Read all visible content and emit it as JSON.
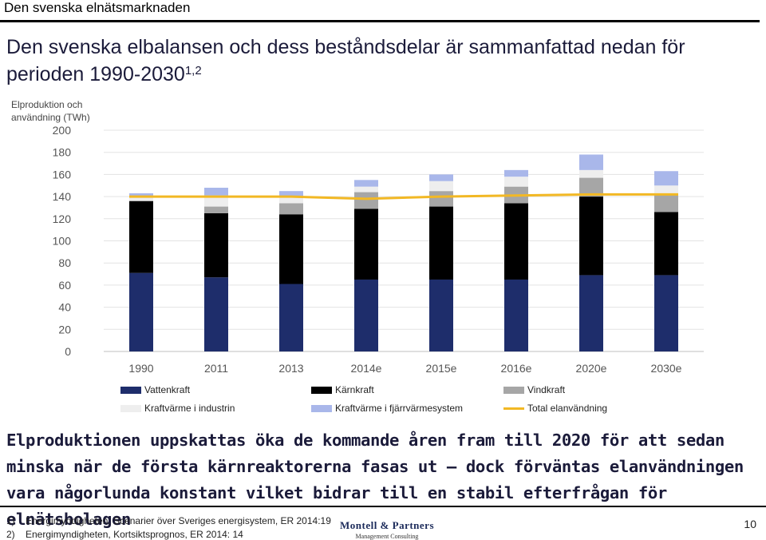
{
  "header": {
    "section_title": "Den svenska elnätsmarknaden"
  },
  "headline": {
    "text": "Den svenska elbalansen och dess beståndsdelar är sammanfattad nedan för perioden 1990-2030",
    "superscript": "1,2"
  },
  "chart_data": {
    "type": "bar",
    "stacked": true,
    "ylabel": "Elproduktion och användning (TWh)",
    "ylim": [
      0,
      200
    ],
    "yticks": [
      0,
      20,
      40,
      60,
      80,
      100,
      120,
      140,
      160,
      180,
      200
    ],
    "grid": true,
    "legend_position": "bottom",
    "categories": [
      "1990",
      "2011",
      "2013",
      "2014e",
      "2015e",
      "2016e",
      "2020e",
      "2030e"
    ],
    "series": [
      {
        "name": "Vattenkraft",
        "color": "#1e2d6b",
        "values": [
          71,
          67,
          61,
          65,
          65,
          65,
          69,
          69
        ]
      },
      {
        "name": "Kärnkraft",
        "color": "#000000",
        "values": [
          65,
          58,
          63,
          64,
          66,
          69,
          71,
          57
        ]
      },
      {
        "name": "Vindkraft",
        "color": "#a6a6a6",
        "values": [
          0,
          6,
          10,
          15,
          14,
          15,
          17,
          17
        ]
      },
      {
        "name": "Kraftvärme i industrin",
        "color": "#eeeeee",
        "values": [
          4,
          10,
          5,
          5,
          9,
          9,
          7,
          7
        ]
      },
      {
        "name": "Kraftvärme i fjärrvärmesystem",
        "color": "#a9b7ea",
        "values": [
          3,
          7,
          6,
          6,
          6,
          6,
          14,
          13
        ]
      }
    ],
    "line_series": {
      "name": "Total elanvändning",
      "color": "#f2b824",
      "values": [
        140,
        140,
        140,
        138,
        140,
        141,
        142,
        142
      ]
    }
  },
  "conclusion": {
    "text": "Elproduktionen uppskattas öka de kommande åren fram till 2020 för att sedan minska när de första kärnreaktorerna fasas ut – dock förväntas elanvändningen vara någorlunda konstant vilket bidrar till en stabil efterfrågan för elnätsbolagen"
  },
  "footnotes": [
    {
      "num": "1)",
      "text": "Energimyndigheten, Scenarier över Sveriges energisystem, ER 2014:19"
    },
    {
      "num": "2)",
      "text": "Energimyndigheten, Kortsiktsprognos, ER 2014: 14"
    }
  ],
  "logo": {
    "name": "Montell & Partners",
    "tagline": "Management Consulting"
  },
  "page_number": "10"
}
